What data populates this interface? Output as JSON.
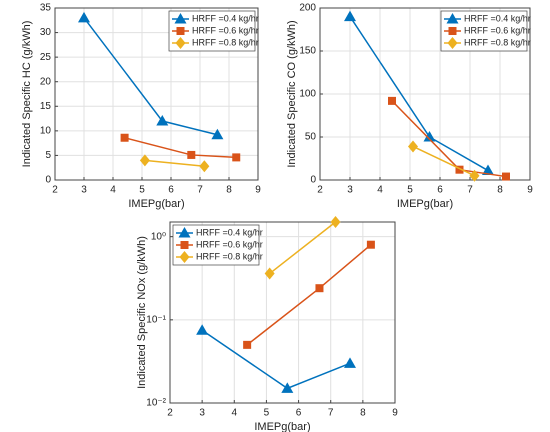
{
  "chart_data": [
    {
      "type": "line",
      "xlabel": "IMEPg(bar)",
      "ylabel": "Indicated Specific HC (g/kWh)",
      "xlim": [
        2,
        9
      ],
      "xticks": [
        2,
        3,
        4,
        5,
        6,
        7,
        8,
        9
      ],
      "ylim": [
        0,
        35
      ],
      "yticks": [
        0,
        5,
        10,
        15,
        20,
        25,
        30,
        35
      ],
      "grid": true,
      "legend": "upper right",
      "series": [
        {
          "name": "HRFF =0.4 kg/hr",
          "color": "#0072bd",
          "marker": "triangle",
          "x": [
            3,
            5.7,
            7.6
          ],
          "values": [
            33,
            12,
            9.2
          ]
        },
        {
          "name": "HRFF =0.6 kg/hr",
          "color": "#d95319",
          "marker": "square",
          "x": [
            4.4,
            6.7,
            8.25
          ],
          "values": [
            8.6,
            5.1,
            4.6
          ]
        },
        {
          "name": "HRFF =0.8 kg/hr",
          "color": "#edb120",
          "marker": "diamond",
          "x": [
            5.1,
            7.15
          ],
          "values": [
            4,
            2.8
          ]
        }
      ]
    },
    {
      "type": "line",
      "xlabel": "IMEPg(bar)",
      "ylabel": "Indicated Specific CO (g/kWh)",
      "xlim": [
        2,
        9
      ],
      "xticks": [
        2,
        3,
        4,
        5,
        6,
        7,
        8,
        9
      ],
      "ylim": [
        0,
        200
      ],
      "yticks": [
        0,
        50,
        100,
        150,
        200
      ],
      "grid": true,
      "legend": "upper right",
      "series": [
        {
          "name": "HRFF =0.4 kg/hr",
          "color": "#0072bd",
          "marker": "triangle",
          "x": [
            3,
            5.65,
            7.6
          ],
          "values": [
            190,
            50,
            11
          ]
        },
        {
          "name": "HRFF =0.6 kg/hr",
          "color": "#d95319",
          "marker": "square",
          "x": [
            4.4,
            6.65,
            8.2
          ],
          "values": [
            92,
            12,
            4
          ]
        },
        {
          "name": "HRFF =0.8 kg/hr",
          "color": "#edb120",
          "marker": "diamond",
          "x": [
            5.1,
            7.15
          ],
          "values": [
            39,
            5
          ]
        }
      ]
    },
    {
      "type": "line",
      "xlabel": "IMEPg(bar)",
      "ylabel": "Indicated Specific NOx (g/kWh)",
      "xlim": [
        2,
        9
      ],
      "xticks": [
        2,
        3,
        4,
        5,
        6,
        7,
        8,
        9
      ],
      "ylim": [
        0.01,
        1.5
      ],
      "yscale": "log",
      "yticks": [
        {
          "value": 0.01,
          "label": "10⁻²"
        },
        {
          "value": 0.1,
          "label": "10⁻¹"
        },
        {
          "value": 1,
          "label": "10⁰"
        }
      ],
      "grid": true,
      "legend": "upper left",
      "series": [
        {
          "name": "HRFF =0.4 kg/hr",
          "color": "#0072bd",
          "marker": "triangle",
          "x": [
            3,
            5.65,
            7.6
          ],
          "values": [
            0.075,
            0.015,
            0.03
          ]
        },
        {
          "name": "HRFF =0.6 kg/hr",
          "color": "#d95319",
          "marker": "square",
          "x": [
            4.4,
            6.65,
            8.25
          ],
          "values": [
            0.05,
            0.24,
            0.8
          ]
        },
        {
          "name": "HRFF =0.8 kg/hr",
          "color": "#edb120",
          "marker": "diamond",
          "x": [
            5.1,
            7.15
          ],
          "values": [
            0.36,
            1.5
          ]
        }
      ]
    }
  ]
}
